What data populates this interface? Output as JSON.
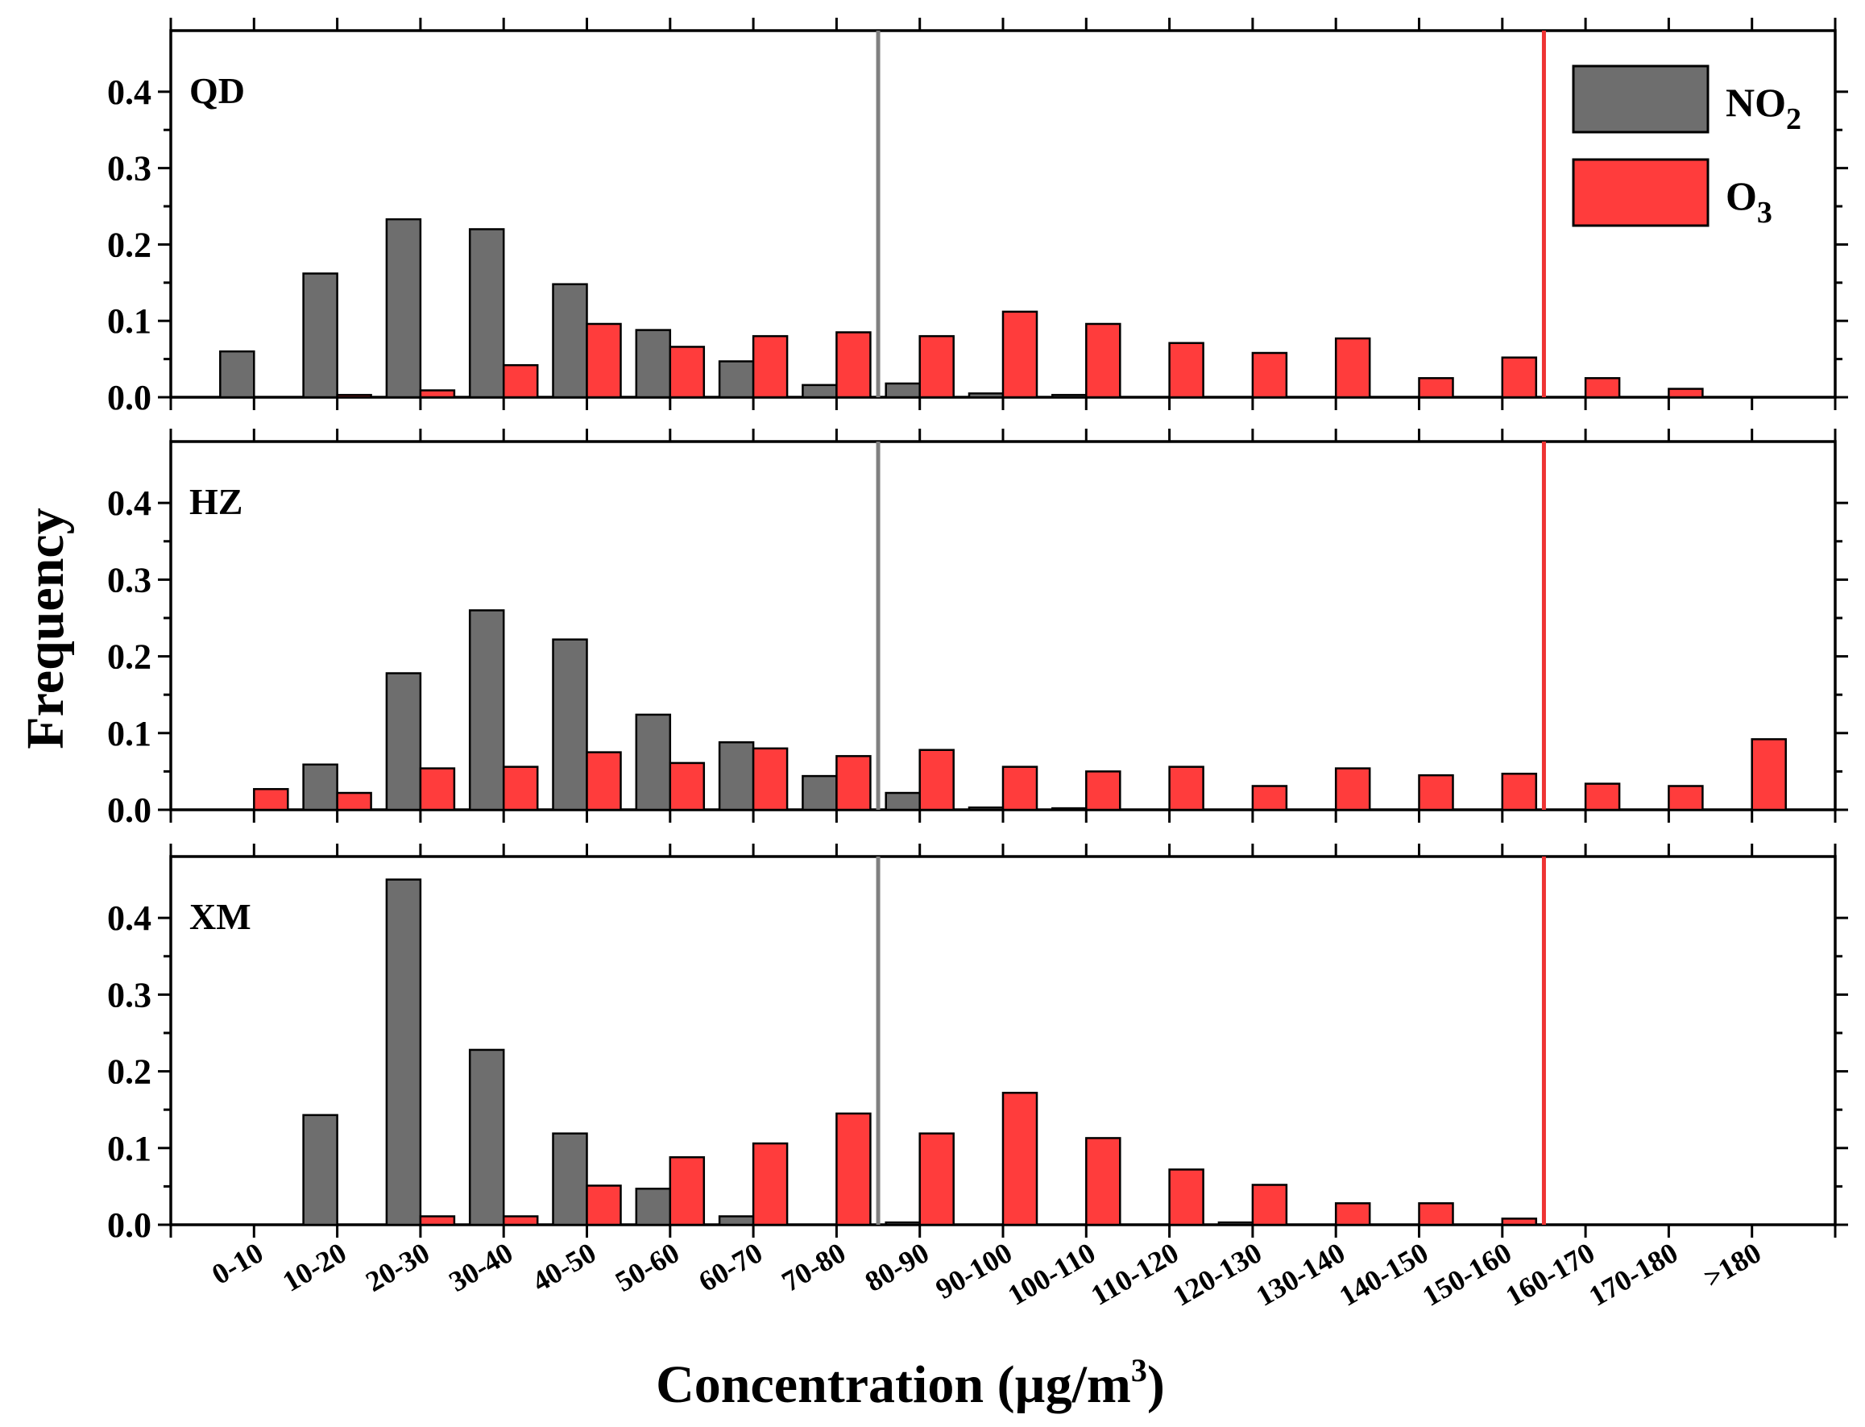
{
  "chart_data": {
    "type": "bar",
    "xlabel": "Concentration (µg/m",
    "xlabel_sup": "3",
    "xlabel_close": ")",
    "ylabel": "Frequency",
    "ylim": [
      0,
      0.48
    ],
    "yticks": [
      "0.0",
      "0.1",
      "0.2",
      "0.3",
      "0.4"
    ],
    "ytick_values": [
      0,
      0.1,
      0.2,
      0.3,
      0.4
    ],
    "categories": [
      "0-10",
      "10-20",
      "20-30",
      "30-40",
      "40-50",
      "50-60",
      "60-70",
      "70-80",
      "80-90",
      "90-100",
      "100-110",
      "110-120",
      "120-130",
      "130-140",
      "140-150",
      "150-160",
      "160-170",
      "170-180",
      ">180"
    ],
    "legend": [
      {
        "main": "NO",
        "sub": "2",
        "color": "#6e6e6e"
      },
      {
        "main": "O",
        "sub": "3",
        "color": "#ff3c3c"
      }
    ],
    "colors": {
      "no2": "#6e6e6e",
      "o3": "#ff3c3c",
      "no2_line": "#808080",
      "o3_line": "#ee3333"
    },
    "reference_lines": {
      "no2_category_boundary": 8,
      "o3_category_boundary": 16
    },
    "panels": [
      {
        "label": "QD",
        "series": [
          {
            "name": "NO2",
            "values": [
              0.06,
              0.162,
              0.233,
              0.22,
              0.148,
              0.088,
              0.047,
              0.016,
              0.018,
              0.005,
              0.003,
              0,
              0,
              0,
              0,
              0,
              0,
              0,
              0
            ]
          },
          {
            "name": "O3",
            "values": [
              0,
              0.003,
              0.009,
              0.042,
              0.096,
              0.066,
              0.08,
              0.085,
              0.08,
              0.112,
              0.096,
              0.071,
              0.058,
              0.077,
              0.025,
              0.052,
              0.025,
              0.011,
              0
            ]
          }
        ]
      },
      {
        "label": "HZ",
        "series": [
          {
            "name": "NO2",
            "values": [
              0,
              0.059,
              0.178,
              0.26,
              0.222,
              0.124,
              0.088,
              0.044,
              0.022,
              0.003,
              0.002,
              0,
              0,
              0,
              0,
              0,
              0,
              0,
              0
            ]
          },
          {
            "name": "O3",
            "values": [
              0.027,
              0.022,
              0.054,
              0.056,
              0.075,
              0.061,
              0.08,
              0.07,
              0.078,
              0.056,
              0.05,
              0.056,
              0.031,
              0.054,
              0.045,
              0.047,
              0.034,
              0.031,
              0.092
            ]
          }
        ]
      },
      {
        "label": "XM",
        "series": [
          {
            "name": "NO2",
            "values": [
              0,
              0.143,
              0.45,
              0.228,
              0.119,
              0.047,
              0.011,
              0,
              0.003,
              0,
              0,
              0,
              0.003,
              0,
              0,
              0,
              0,
              0,
              0
            ]
          },
          {
            "name": "O3",
            "values": [
              0,
              0,
              0.011,
              0.011,
              0.051,
              0.088,
              0.106,
              0.145,
              0.119,
              0.172,
              0.113,
              0.072,
              0.052,
              0.028,
              0.028,
              0.008,
              0,
              0,
              0
            ]
          }
        ]
      }
    ]
  }
}
